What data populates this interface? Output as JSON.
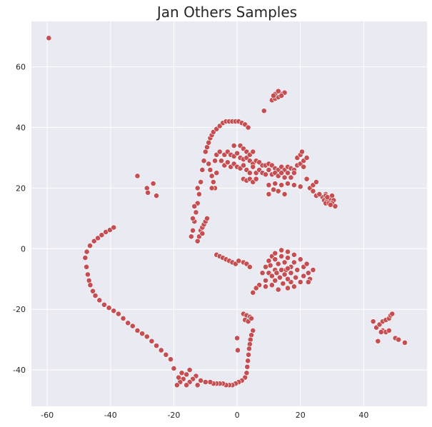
{
  "chart_data": {
    "type": "scatter",
    "title": "Jan Others Samples",
    "xlabel": "",
    "ylabel": "",
    "xlim": [
      -65,
      60
    ],
    "ylim": [
      -52,
      75
    ],
    "xticks": [
      -60,
      -40,
      -20,
      0,
      20,
      40
    ],
    "yticks": [
      60,
      40,
      20,
      0,
      -20,
      -40
    ],
    "grid": true,
    "point_color": "#c44e52",
    "point_edge_color": "#ffffff",
    "background_color": "#eaeaf2",
    "points": [
      [
        -59.5,
        69.5
      ],
      [
        -48,
        -3
      ],
      [
        -47.6,
        -6
      ],
      [
        -47.2,
        -8.5
      ],
      [
        -46.8,
        -10.5
      ],
      [
        -46.4,
        -12
      ],
      [
        -45.6,
        -14
      ],
      [
        -44.8,
        -15.5
      ],
      [
        -43.5,
        -17
      ],
      [
        -42,
        -18.5
      ],
      [
        -40.5,
        -19.5
      ],
      [
        -39,
        -20.5
      ],
      [
        -37.5,
        -21.5
      ],
      [
        -36,
        -23
      ],
      [
        -34.5,
        -24.5
      ],
      [
        -33,
        -25.5
      ],
      [
        -31.5,
        -27
      ],
      [
        -30,
        -28
      ],
      [
        -28.5,
        -29
      ],
      [
        -27,
        -30.5
      ],
      [
        -25.5,
        -32
      ],
      [
        -24,
        -33.5
      ],
      [
        -22.5,
        -35
      ],
      [
        -21,
        -36.5
      ],
      [
        -20,
        -39.5
      ],
      [
        -47.5,
        -1
      ],
      [
        -46.5,
        1
      ],
      [
        -45.2,
        2.5
      ],
      [
        -44,
        3.5
      ],
      [
        -42.8,
        4.5
      ],
      [
        -41.5,
        5.5
      ],
      [
        -40.2,
        6.2
      ],
      [
        -39,
        7
      ],
      [
        -31.5,
        24
      ],
      [
        -28.5,
        20
      ],
      [
        -28.2,
        18.5
      ],
      [
        -26.5,
        21.5
      ],
      [
        -25.5,
        17.5
      ],
      [
        -14.5,
        4
      ],
      [
        -14,
        6
      ],
      [
        -13.5,
        9
      ],
      [
        -13,
        12
      ],
      [
        -12.5,
        15
      ],
      [
        -12,
        18
      ],
      [
        -11.5,
        22
      ],
      [
        -11,
        26
      ],
      [
        -10.5,
        29
      ],
      [
        -10,
        32
      ],
      [
        -9.5,
        33.5
      ],
      [
        -9,
        35
      ],
      [
        -8.5,
        36.5
      ],
      [
        -8,
        37.5
      ],
      [
        -7.5,
        38.5
      ],
      [
        -6.5,
        39.5
      ],
      [
        -5.5,
        40.5
      ],
      [
        -4.5,
        41.5
      ],
      [
        -3.5,
        42
      ],
      [
        -2.5,
        42
      ],
      [
        -1.5,
        42
      ],
      [
        -0.5,
        42
      ],
      [
        0.5,
        42
      ],
      [
        1.5,
        41.5
      ],
      [
        2.5,
        41
      ],
      [
        3.5,
        40
      ],
      [
        -12,
        4
      ],
      [
        -11.5,
        6
      ],
      [
        -11,
        7
      ],
      [
        -10.5,
        8
      ],
      [
        -10,
        9
      ],
      [
        -9.5,
        10
      ],
      [
        -12.5,
        2.5
      ],
      [
        -11,
        5
      ],
      [
        -14,
        10
      ],
      [
        -13.5,
        14
      ],
      [
        -12.5,
        20
      ],
      [
        -7,
        29
      ],
      [
        -6.5,
        31
      ],
      [
        -5.5,
        32
      ],
      [
        -4,
        31
      ],
      [
        -3,
        32
      ],
      [
        -2,
        31
      ],
      [
        -1,
        30.5
      ],
      [
        0,
        31.5
      ],
      [
        1,
        30
      ],
      [
        2,
        29.5
      ],
      [
        3,
        30
      ],
      [
        4,
        29
      ],
      [
        5,
        28
      ],
      [
        6,
        29
      ],
      [
        7,
        28.5
      ],
      [
        8,
        27.5
      ],
      [
        9,
        27.5
      ],
      [
        10,
        28
      ],
      [
        11,
        27.5
      ],
      [
        12,
        26.5
      ],
      [
        13,
        26
      ],
      [
        14,
        27
      ],
      [
        15,
        26
      ],
      [
        16,
        27
      ],
      [
        17,
        26.5
      ],
      [
        18,
        26
      ],
      [
        19,
        27.5
      ],
      [
        20,
        28
      ],
      [
        21,
        27
      ],
      [
        -5,
        29
      ],
      [
        -4,
        27.5
      ],
      [
        -3,
        28.5
      ],
      [
        -2,
        27
      ],
      [
        -1,
        28
      ],
      [
        0,
        27
      ],
      [
        1,
        26.5
      ],
      [
        2,
        27.5
      ],
      [
        3,
        26
      ],
      [
        4,
        25
      ],
      [
        5,
        27
      ],
      [
        6,
        25
      ],
      [
        7,
        26
      ],
      [
        8,
        25
      ],
      [
        9,
        24.5
      ],
      [
        10,
        26
      ],
      [
        11,
        24.5
      ],
      [
        12,
        25
      ],
      [
        13,
        24
      ],
      [
        14,
        25
      ],
      [
        15,
        23.5
      ],
      [
        16,
        25
      ],
      [
        17,
        23.5
      ],
      [
        18,
        25
      ],
      [
        -9,
        28
      ],
      [
        -8.5,
        26
      ],
      [
        -8,
        24
      ],
      [
        -7.5,
        22
      ],
      [
        -7,
        20
      ],
      [
        -8,
        20
      ],
      [
        -6.5,
        25
      ],
      [
        -1,
        34
      ],
      [
        1,
        34
      ],
      [
        2,
        33
      ],
      [
        3,
        32
      ],
      [
        4,
        31
      ],
      [
        5,
        32
      ],
      [
        2,
        23
      ],
      [
        3,
        22.5
      ],
      [
        4,
        23
      ],
      [
        5,
        22
      ],
      [
        6,
        23
      ],
      [
        10,
        21
      ],
      [
        12,
        21.5
      ],
      [
        14,
        21
      ],
      [
        16,
        21.5
      ],
      [
        18,
        21
      ],
      [
        20,
        20.5
      ],
      [
        22,
        23
      ],
      [
        23,
        20
      ],
      [
        24,
        21
      ],
      [
        25,
        22
      ],
      [
        28,
        18
      ],
      [
        19,
        30
      ],
      [
        20,
        31
      ],
      [
        21,
        29
      ],
      [
        22,
        30
      ],
      [
        20.5,
        32
      ],
      [
        10,
        18
      ],
      [
        11.5,
        19.5
      ],
      [
        13,
        19
      ],
      [
        15,
        18
      ],
      [
        24,
        19
      ],
      [
        25,
        17.5
      ],
      [
        27,
        17
      ],
      [
        28,
        17.5
      ],
      [
        29,
        17
      ],
      [
        30,
        17.5
      ],
      [
        27.5,
        16
      ],
      [
        28.5,
        16
      ],
      [
        29.5,
        16
      ],
      [
        30.5,
        16
      ],
      [
        28,
        15
      ],
      [
        29,
        15
      ],
      [
        30,
        15
      ],
      [
        31,
        14
      ],
      [
        29.5,
        14.5
      ],
      [
        28.5,
        17
      ],
      [
        26,
        18
      ],
      [
        8.5,
        45.5
      ],
      [
        11,
        49
      ],
      [
        12,
        49.5
      ],
      [
        13,
        50
      ],
      [
        14,
        51
      ],
      [
        15,
        51.5
      ],
      [
        12,
        51
      ],
      [
        13,
        52
      ],
      [
        14,
        50.5
      ],
      [
        11.5,
        50.5
      ],
      [
        -6.5,
        -2
      ],
      [
        -5.5,
        -2.5
      ],
      [
        -4.5,
        -3
      ],
      [
        -3.5,
        -3.5
      ],
      [
        -2.5,
        -4
      ],
      [
        -1.5,
        -4.5
      ],
      [
        -0.5,
        -5
      ],
      [
        0.5,
        -4
      ],
      [
        2,
        -4.5
      ],
      [
        3,
        -5
      ],
      [
        4,
        -6
      ],
      [
        8,
        -8
      ],
      [
        9,
        -6
      ],
      [
        10,
        -4
      ],
      [
        11,
        -2.5
      ],
      [
        12,
        -1.5
      ],
      [
        14,
        -0.5
      ],
      [
        16,
        -1
      ],
      [
        18,
        -2
      ],
      [
        20,
        -3.5
      ],
      [
        21,
        -6
      ],
      [
        21,
        -9
      ],
      [
        20,
        -11
      ],
      [
        18,
        -12.5
      ],
      [
        16,
        -13
      ],
      [
        13,
        -13.5
      ],
      [
        11,
        -12
      ],
      [
        9,
        -10.5
      ],
      [
        10,
        -8
      ],
      [
        10.5,
        -5.5
      ],
      [
        12,
        -3.5
      ],
      [
        14,
        -2.5
      ],
      [
        16,
        -3
      ],
      [
        18,
        -4.5
      ],
      [
        19,
        -7
      ],
      [
        18.5,
        -9.5
      ],
      [
        17,
        -11
      ],
      [
        14.5,
        -11.5
      ],
      [
        12,
        -10.5
      ],
      [
        11,
        -9
      ],
      [
        12,
        -7
      ],
      [
        13,
        -5
      ],
      [
        15,
        -4.5
      ],
      [
        17,
        -6
      ],
      [
        17,
        -8
      ],
      [
        16,
        -10
      ],
      [
        13.5,
        -9.5
      ],
      [
        12.5,
        -8
      ],
      [
        14,
        -7
      ],
      [
        15.5,
        -7
      ],
      [
        15,
        -8.5
      ],
      [
        16,
        -6.5
      ],
      [
        22,
        -5
      ],
      [
        22.5,
        -8
      ],
      [
        23,
        -10
      ],
      [
        7,
        -12
      ],
      [
        6,
        -13
      ],
      [
        5,
        -14.5
      ],
      [
        9,
        -12.5
      ],
      [
        22.5,
        -11
      ],
      [
        24,
        -7
      ],
      [
        2,
        -21.5
      ],
      [
        3,
        -22
      ],
      [
        4,
        -22.5
      ],
      [
        2.5,
        -23.5
      ],
      [
        3.5,
        -24
      ],
      [
        4.5,
        -23
      ],
      [
        5,
        -27
      ],
      [
        4.5,
        -28.5
      ],
      [
        4.2,
        -30
      ],
      [
        4,
        -31.5
      ],
      [
        3.8,
        -33
      ],
      [
        3.6,
        -35
      ],
      [
        3.4,
        -37
      ],
      [
        3.2,
        -39
      ],
      [
        3,
        -41
      ],
      [
        2.5,
        -42.5
      ],
      [
        1.5,
        -43.5
      ],
      [
        0.5,
        -44
      ],
      [
        -0.5,
        -44.5
      ],
      [
        -1.5,
        -45
      ],
      [
        -2.5,
        -45
      ],
      [
        -3.5,
        -45
      ],
      [
        -4.5,
        -44.5
      ],
      [
        -5.5,
        -44.5
      ],
      [
        -6.5,
        -44.5
      ],
      [
        -7.5,
        -44.5
      ],
      [
        -8.5,
        -44
      ],
      [
        -10,
        -44
      ],
      [
        -11.5,
        -43.5
      ],
      [
        -12.5,
        -45
      ],
      [
        -13,
        -42
      ],
      [
        -14,
        -43
      ],
      [
        -15,
        -44
      ],
      [
        -16,
        -45
      ],
      [
        -17,
        -43
      ],
      [
        -18,
        -44
      ],
      [
        -19,
        -45
      ],
      [
        -15,
        -40
      ],
      [
        -16,
        -41.5
      ],
      [
        -17.5,
        -41
      ],
      [
        -18.5,
        -42.5
      ],
      [
        0,
        -29.5
      ],
      [
        0.2,
        -33.5
      ],
      [
        43,
        -24
      ],
      [
        44,
        -26
      ],
      [
        45,
        -25
      ],
      [
        46,
        -24
      ],
      [
        47,
        -23.5
      ],
      [
        48,
        -23
      ],
      [
        48.5,
        -22
      ],
      [
        49,
        -21.5
      ],
      [
        46,
        -27
      ],
      [
        47,
        -27.5
      ],
      [
        48,
        -27
      ],
      [
        45.5,
        -27.5
      ],
      [
        44.5,
        -30.5
      ],
      [
        50,
        -29.5
      ],
      [
        51,
        -30
      ],
      [
        53,
        -31
      ]
    ]
  }
}
